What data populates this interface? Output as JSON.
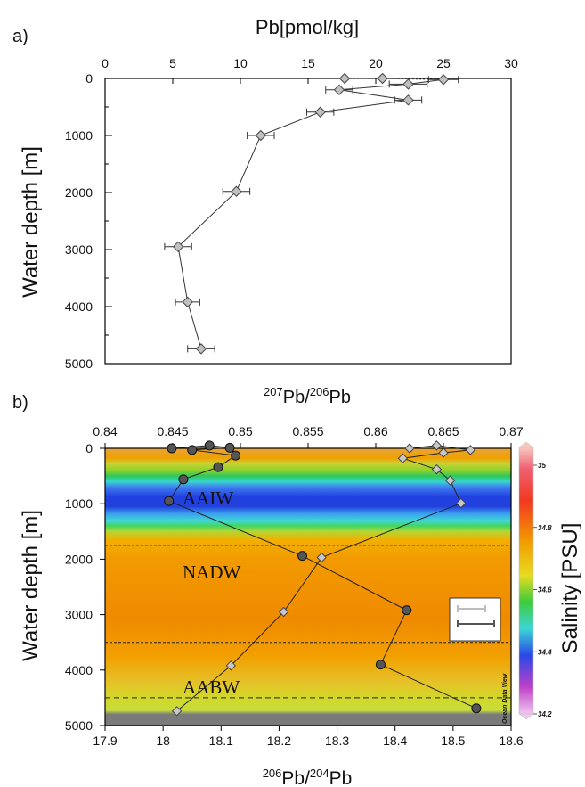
{
  "chart_data": [
    {
      "type": "scatter",
      "panel_label": "a)",
      "xlabel": "Pb[pmol/kg]",
      "ylabel": "Water depth [m]",
      "xlim": [
        0,
        30
      ],
      "ylim": [
        5000,
        0
      ],
      "x_ticks": [
        "0",
        "5",
        "10",
        "15",
        "20",
        "25",
        "30"
      ],
      "y_ticks": [
        "0",
        "1000",
        "2000",
        "3000",
        "4000",
        "5000"
      ],
      "x_axis_position": "top",
      "series": [
        {
          "marker": "diamond",
          "color": "#c0c0c0",
          "points": [
            {
              "x": 17.7,
              "y": 0,
              "err": 0
            },
            {
              "x": 20.5,
              "y": 0,
              "err": 0
            },
            {
              "x": 25.0,
              "y": 20,
              "err": 1.1
            },
            {
              "x": 22.4,
              "y": 100,
              "err": 1.4
            },
            {
              "x": 17.3,
              "y": 200,
              "err": 1.0
            },
            {
              "x": 22.4,
              "y": 380,
              "err": 1.0
            },
            {
              "x": 15.9,
              "y": 590,
              "err": 1.0
            },
            {
              "x": 11.5,
              "y": 1000,
              "err": 1.0
            },
            {
              "x": 9.7,
              "y": 1980,
              "err": 1.0
            },
            {
              "x": 5.4,
              "y": 2950,
              "err": 1.0
            },
            {
              "x": 6.1,
              "y": 3920,
              "err": 0.9
            },
            {
              "x": 7.1,
              "y": 4740,
              "err": 1.0
            }
          ]
        }
      ]
    },
    {
      "type": "line",
      "panel_label": "b)",
      "xlabel_top": "207Pb/206Pb",
      "xlabel_bottom": "206Pb/204Pb",
      "ylabel": "Water depth [m]",
      "ylabel_right": "Salinity [PSU]",
      "xlim_top": [
        0.84,
        0.87
      ],
      "xlim_bottom": [
        17.9,
        18.6
      ],
      "ylim": [
        5000,
        0
      ],
      "x_ticks_top": [
        "0.84",
        "0.845",
        "0.85",
        "0.855",
        "0.86",
        "0.865",
        "0.87"
      ],
      "x_ticks_bottom": [
        "17.9",
        "18",
        "18.1",
        "18.2",
        "18.3",
        "18.4",
        "18.5",
        "18.6"
      ],
      "y_ticks": [
        "0",
        "1000",
        "2000",
        "3000",
        "4000",
        "5000"
      ],
      "water_masses": [
        "AAIW",
        "NADW",
        "AABW"
      ],
      "boundaries_m": [
        1750,
        3500,
        4500
      ],
      "colorbar": {
        "label": "Salinity [PSU]",
        "range": [
          34.2,
          35
        ],
        "ticks": [
          "35",
          "34.8",
          "34.6",
          "34.4",
          "34.2"
        ],
        "watermark": "Ocean Data View"
      },
      "legend_position": "bottom-right",
      "series": [
        {
          "axis": "top",
          "marker": "diamond",
          "color": "#c8c8c8",
          "points": [
            {
              "x": 0.8625,
              "y": 0
            },
            {
              "x": 0.8645,
              "y": -50
            },
            {
              "x": 0.867,
              "y": 30
            },
            {
              "x": 0.865,
              "y": 80
            },
            {
              "x": 0.862,
              "y": 180
            },
            {
              "x": 0.8645,
              "y": 380
            },
            {
              "x": 0.8655,
              "y": 580
            },
            {
              "x": 0.8663,
              "y": 990
            },
            {
              "x": 0.856,
              "y": 1970
            },
            {
              "x": 0.8532,
              "y": 2950
            },
            {
              "x": 0.8493,
              "y": 3920
            },
            {
              "x": 0.8453,
              "y": 4740
            }
          ]
        },
        {
          "axis": "bottom",
          "marker": "circle",
          "color": "#555555",
          "points": [
            {
              "x": 18.015,
              "y": 0
            },
            {
              "x": 18.08,
              "y": -50
            },
            {
              "x": 18.115,
              "y": -10
            },
            {
              "x": 18.05,
              "y": 30
            },
            {
              "x": 18.125,
              "y": 130
            },
            {
              "x": 18.095,
              "y": 340
            },
            {
              "x": 18.035,
              "y": 560
            },
            {
              "x": 18.01,
              "y": 950
            },
            {
              "x": 18.24,
              "y": 1940
            },
            {
              "x": 18.42,
              "y": 2920
            },
            {
              "x": 18.375,
              "y": 3900
            },
            {
              "x": 18.54,
              "y": 4690
            }
          ]
        }
      ]
    }
  ]
}
